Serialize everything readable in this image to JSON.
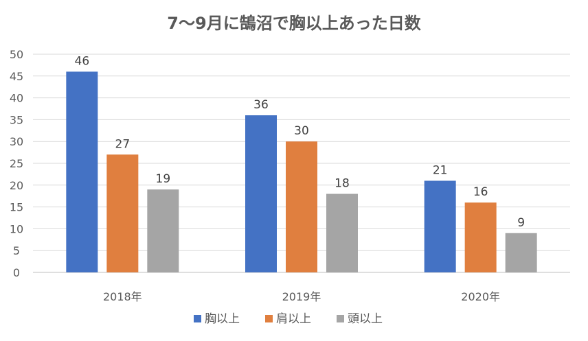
{
  "chart_data": {
    "type": "bar",
    "title": "7〜9月に鵠沼で胸以上あった日数",
    "categories": [
      "2018年",
      "2019年",
      "2020年"
    ],
    "series": [
      {
        "name": "胸以上",
        "values": [
          46,
          36,
          21
        ],
        "color": "#4472c4"
      },
      {
        "name": "肩以上",
        "values": [
          27,
          30,
          16
        ],
        "color": "#e07f3f"
      },
      {
        "name": "頭以上",
        "values": [
          19,
          18,
          9
        ],
        "color": "#a5a5a5"
      }
    ],
    "ylim": [
      0,
      50
    ],
    "yticks": [
      0,
      5,
      10,
      15,
      20,
      25,
      30,
      35,
      40,
      45,
      50
    ],
    "grid": true,
    "data_labels": true,
    "legend_position": "bottom"
  }
}
